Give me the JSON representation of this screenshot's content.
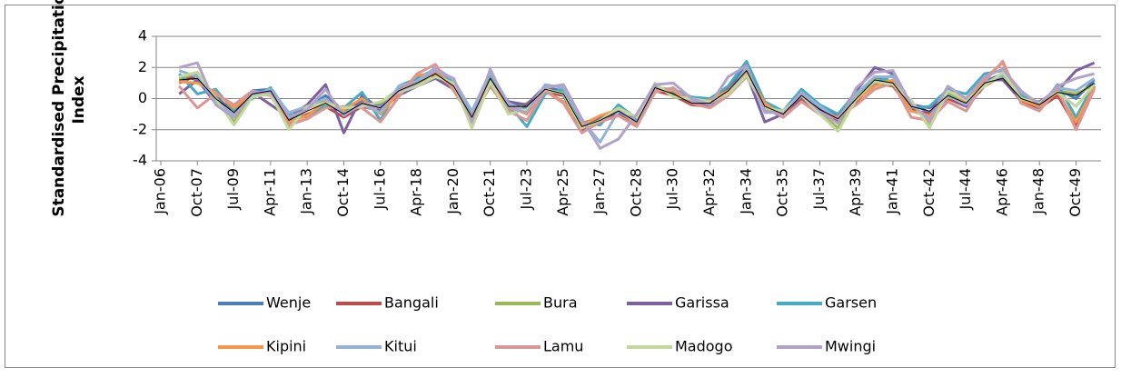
{
  "chart_data": {
    "type": "line",
    "y_label": "Standardised Precipitation Index",
    "categories": [
      "Jan-06",
      null,
      "Oct-07",
      null,
      "Jul-09",
      null,
      "Apr-11",
      null,
      "Jan-13",
      null,
      "Oct-14",
      null,
      "Jul-16",
      null,
      "Apr-18",
      null,
      "Jan-20",
      null,
      "Oct-21",
      null,
      "Jul-23",
      null,
      "Apr-25",
      null,
      "Jan-27",
      null,
      "Oct-28",
      null,
      "Jul-30",
      null,
      "Apr-32",
      null,
      "Jan-34",
      null,
      "Oct-35",
      null,
      "Jul-37",
      null,
      "Apr-39",
      null,
      "Jan-41",
      null,
      "Oct-42",
      null,
      "Jul-44",
      null,
      "Apr-46",
      null,
      "Jan-48",
      null,
      "Oct-49",
      null
    ],
    "ylim": [
      -4,
      4
    ],
    "yticks": [
      -4,
      -2,
      0,
      2,
      4
    ],
    "grid": true,
    "series": [
      {
        "name": "Wenje",
        "color": "#4a7ebb",
        "values": [
          null,
          1.5,
          1.2,
          0.2,
          -1.0,
          0.5,
          0.6,
          -1.3,
          -0.6,
          0.2,
          -0.8,
          -0.2,
          -0.4,
          0.6,
          1.2,
          1.8,
          0.9,
          -1.0,
          1.5,
          -0.3,
          -0.6,
          0.7,
          0.5,
          -1.6,
          -1.5,
          -0.6,
          -1.2,
          0.8,
          0.4,
          -0.2,
          -0.2,
          0.6,
          2.2,
          -0.4,
          -1.0,
          0.3,
          -0.6,
          -1.1,
          0.2,
          1.3,
          1.1,
          -0.3,
          -0.9,
          0.3,
          -0.1,
          1.1,
          1.6,
          0.2,
          -0.5,
          0.6,
          0.0,
          1.2
        ]
      },
      {
        "name": "Bangali",
        "color": "#be4b48",
        "values": [
          null,
          1.0,
          1.5,
          -0.2,
          -0.8,
          0.1,
          0.4,
          -1.6,
          -1.0,
          -0.5,
          -1.2,
          -0.5,
          -0.8,
          0.3,
          1.4,
          1.5,
          0.6,
          -1.4,
          1.2,
          -0.7,
          -0.4,
          0.4,
          0.2,
          -2.0,
          -1.3,
          -1.0,
          -1.6,
          0.5,
          0.2,
          -0.4,
          -0.5,
          0.3,
          1.5,
          -0.6,
          -1.2,
          0.0,
          -0.8,
          -1.5,
          -0.2,
          1.0,
          0.8,
          -0.7,
          -1.0,
          0.0,
          -0.5,
          0.8,
          1.5,
          -0.2,
          -0.6,
          0.2,
          -1.8,
          0.8
        ]
      },
      {
        "name": "Bura",
        "color": "#98b954",
        "values": [
          null,
          1.3,
          1.6,
          0.1,
          -1.5,
          0.2,
          0.5,
          -1.8,
          -0.6,
          -0.2,
          -0.9,
          -0.4,
          -0.3,
          0.6,
          0.9,
          1.7,
          0.9,
          -1.6,
          1.4,
          -0.9,
          -0.3,
          0.5,
          0.4,
          -1.8,
          -1.5,
          -0.5,
          -1.3,
          0.9,
          0.2,
          -0.1,
          -0.2,
          0.4,
          1.9,
          -0.7,
          -0.8,
          0.3,
          -0.9,
          -1.9,
          0.1,
          1.2,
          1.1,
          -0.2,
          -1.8,
          0.4,
          -0.2,
          0.9,
          1.4,
          0.1,
          -0.3,
          0.5,
          0.3,
          0.9
        ]
      },
      {
        "name": "Garissa",
        "color": "#7d60a0",
        "values": [
          null,
          0.3,
          1.2,
          -0.3,
          -0.5,
          0.4,
          -0.4,
          -1.2,
          -0.4,
          0.9,
          -2.2,
          0.2,
          -0.7,
          0.2,
          0.8,
          1.3,
          0.6,
          -0.8,
          1.1,
          -0.2,
          -0.4,
          0.8,
          0.2,
          -1.6,
          -1.2,
          -0.9,
          -1.4,
          0.8,
          0.4,
          -0.3,
          -0.4,
          0.7,
          1.6,
          -1.5,
          -1.0,
          0.1,
          -0.7,
          -1.1,
          0.5,
          2.0,
          1.6,
          -0.4,
          -0.6,
          0.2,
          -0.5,
          1.2,
          1.2,
          -0.1,
          -0.2,
          0.5,
          1.8,
          2.3
        ]
      },
      {
        "name": "Garsen",
        "color": "#46aac5",
        "values": [
          null,
          1.6,
          0.3,
          0.6,
          -0.8,
          0.0,
          0.7,
          -1.0,
          -1.2,
          -0.4,
          -0.6,
          0.4,
          -1.4,
          0.8,
          1.3,
          1.9,
          1.1,
          -1.1,
          1.6,
          -0.4,
          -1.8,
          0.3,
          0.6,
          -1.5,
          -1.7,
          -0.4,
          -1.3,
          0.5,
          0.6,
          0.1,
          0.0,
          0.8,
          2.4,
          -0.2,
          -0.8,
          0.6,
          -0.4,
          -1.0,
          0.4,
          1.0,
          1.5,
          -0.6,
          -0.5,
          0.6,
          0.3,
          1.6,
          1.8,
          0.3,
          -0.6,
          0.9,
          -1.2,
          1.0
        ]
      },
      {
        "name": "Kipini",
        "color": "#f79646",
        "values": [
          null,
          1.1,
          1.0,
          0.4,
          -0.6,
          0.3,
          0.2,
          -1.5,
          -1.1,
          -0.2,
          -0.7,
          0.0,
          -1.0,
          0.4,
          1.5,
          1.6,
          0.7,
          -1.2,
          1.0,
          -0.5,
          -1.0,
          0.5,
          -0.2,
          -1.7,
          -1.1,
          -0.7,
          -1.7,
          0.6,
          0.5,
          -0.3,
          -0.1,
          0.5,
          1.7,
          -0.3,
          -1.1,
          0.4,
          -0.9,
          -1.2,
          -0.1,
          0.8,
          1.2,
          -0.8,
          -1.1,
          0.1,
          -0.2,
          1.3,
          2.3,
          -0.1,
          -0.5,
          0.4,
          -1.5,
          0.7
        ]
      },
      {
        "name": "Kitui",
        "color": "#95b3d7",
        "values": [
          null,
          1.8,
          1.4,
          -0.2,
          -1.0,
          0.2,
          0.6,
          -0.9,
          -0.5,
          0.0,
          -1.0,
          -0.4,
          -0.9,
          0.8,
          1.1,
          2.0,
          1.2,
          -0.8,
          1.7,
          -0.3,
          -0.8,
          0.9,
          0.7,
          -1.4,
          -2.8,
          -0.8,
          -1.5,
          0.7,
          0.6,
          -0.2,
          -0.3,
          0.2,
          2.0,
          -0.9,
          -0.9,
          0.4,
          -0.5,
          -1.3,
          0.3,
          1.4,
          1.4,
          -0.3,
          -1.5,
          0.2,
          -0.4,
          1.0,
          1.5,
          0.4,
          -0.3,
          0.7,
          0.5,
          1.3
        ]
      },
      {
        "name": "Lamu",
        "color": "#d99694",
        "values": [
          null,
          0.8,
          -0.6,
          0.3,
          -0.4,
          0.5,
          0.2,
          -1.7,
          -1.3,
          -0.6,
          -0.5,
          -0.6,
          -1.5,
          0.1,
          1.6,
          2.2,
          0.5,
          -1.3,
          0.8,
          -0.8,
          -1.4,
          0.5,
          -0.3,
          -2.2,
          -1.5,
          -1.1,
          -1.8,
          0.4,
          0.7,
          -0.3,
          -0.6,
          0.2,
          1.4,
          -0.5,
          -1.2,
          -0.2,
          -1.0,
          -1.2,
          -0.4,
          0.6,
          1.0,
          -1.2,
          -1.4,
          -0.2,
          -0.8,
          1.1,
          2.4,
          -0.3,
          -0.8,
          0.6,
          -2.0,
          0.6
        ]
      },
      {
        "name": "Madogo",
        "color": "#c3d69b",
        "values": [
          null,
          1.4,
          1.7,
          0.0,
          -1.7,
          0.1,
          0.3,
          -2.0,
          -0.5,
          -0.3,
          -0.6,
          -0.5,
          -0.2,
          0.4,
          0.8,
          1.4,
          1.0,
          -1.9,
          1.1,
          -1.0,
          -0.7,
          0.6,
          0.3,
          -1.9,
          -1.4,
          -0.6,
          -1.2,
          1.0,
          0.1,
          0.0,
          -0.2,
          0.3,
          1.5,
          -0.6,
          -0.8,
          0.2,
          -1.0,
          -2.1,
          0.0,
          1.1,
          0.9,
          -0.1,
          -1.9,
          0.5,
          -0.1,
          0.8,
          1.7,
          0.0,
          -0.3,
          0.4,
          -0.5,
          0.9
        ]
      },
      {
        "name": "Mwingi",
        "color": "#b3a2c7",
        "values": [
          null,
          2.0,
          2.3,
          -0.4,
          -1.2,
          0.4,
          0.4,
          -1.2,
          -0.7,
          0.6,
          -1.1,
          -0.3,
          -0.6,
          0.5,
          1.0,
          1.8,
          1.3,
          -1.5,
          1.9,
          -0.6,
          -0.9,
          0.7,
          0.9,
          -1.3,
          -3.2,
          -2.6,
          -1.0,
          0.9,
          1.0,
          0.0,
          -0.4,
          1.4,
          2.1,
          -0.8,
          -1.0,
          0.3,
          -0.8,
          -1.6,
          0.7,
          1.7,
          1.8,
          -0.4,
          -1.3,
          0.8,
          0.0,
          1.4,
          1.9,
          0.5,
          -0.4,
          0.8,
          1.3,
          1.6
        ]
      },
      {
        "color": "#000000",
        "values": [
          null,
          1.2,
          1.3,
          0.0,
          -0.9,
          0.3,
          0.5,
          -1.4,
          -0.8,
          -0.3,
          -1.0,
          -0.3,
          -0.6,
          0.5,
          1.0,
          1.6,
          0.8,
          -1.2,
          1.3,
          -0.5,
          -0.5,
          0.6,
          0.3,
          -1.8,
          -1.4,
          -0.8,
          -1.5,
          0.7,
          0.3,
          -0.3,
          -0.3,
          0.5,
          1.8,
          -0.5,
          -1.0,
          0.2,
          -0.7,
          -1.3,
          0.0,
          1.2,
          1.0,
          -0.5,
          -0.8,
          0.2,
          -0.3,
          1.0,
          1.3,
          0.0,
          -0.4,
          0.4,
          0.2,
          1.0
        ]
      }
    ]
  }
}
